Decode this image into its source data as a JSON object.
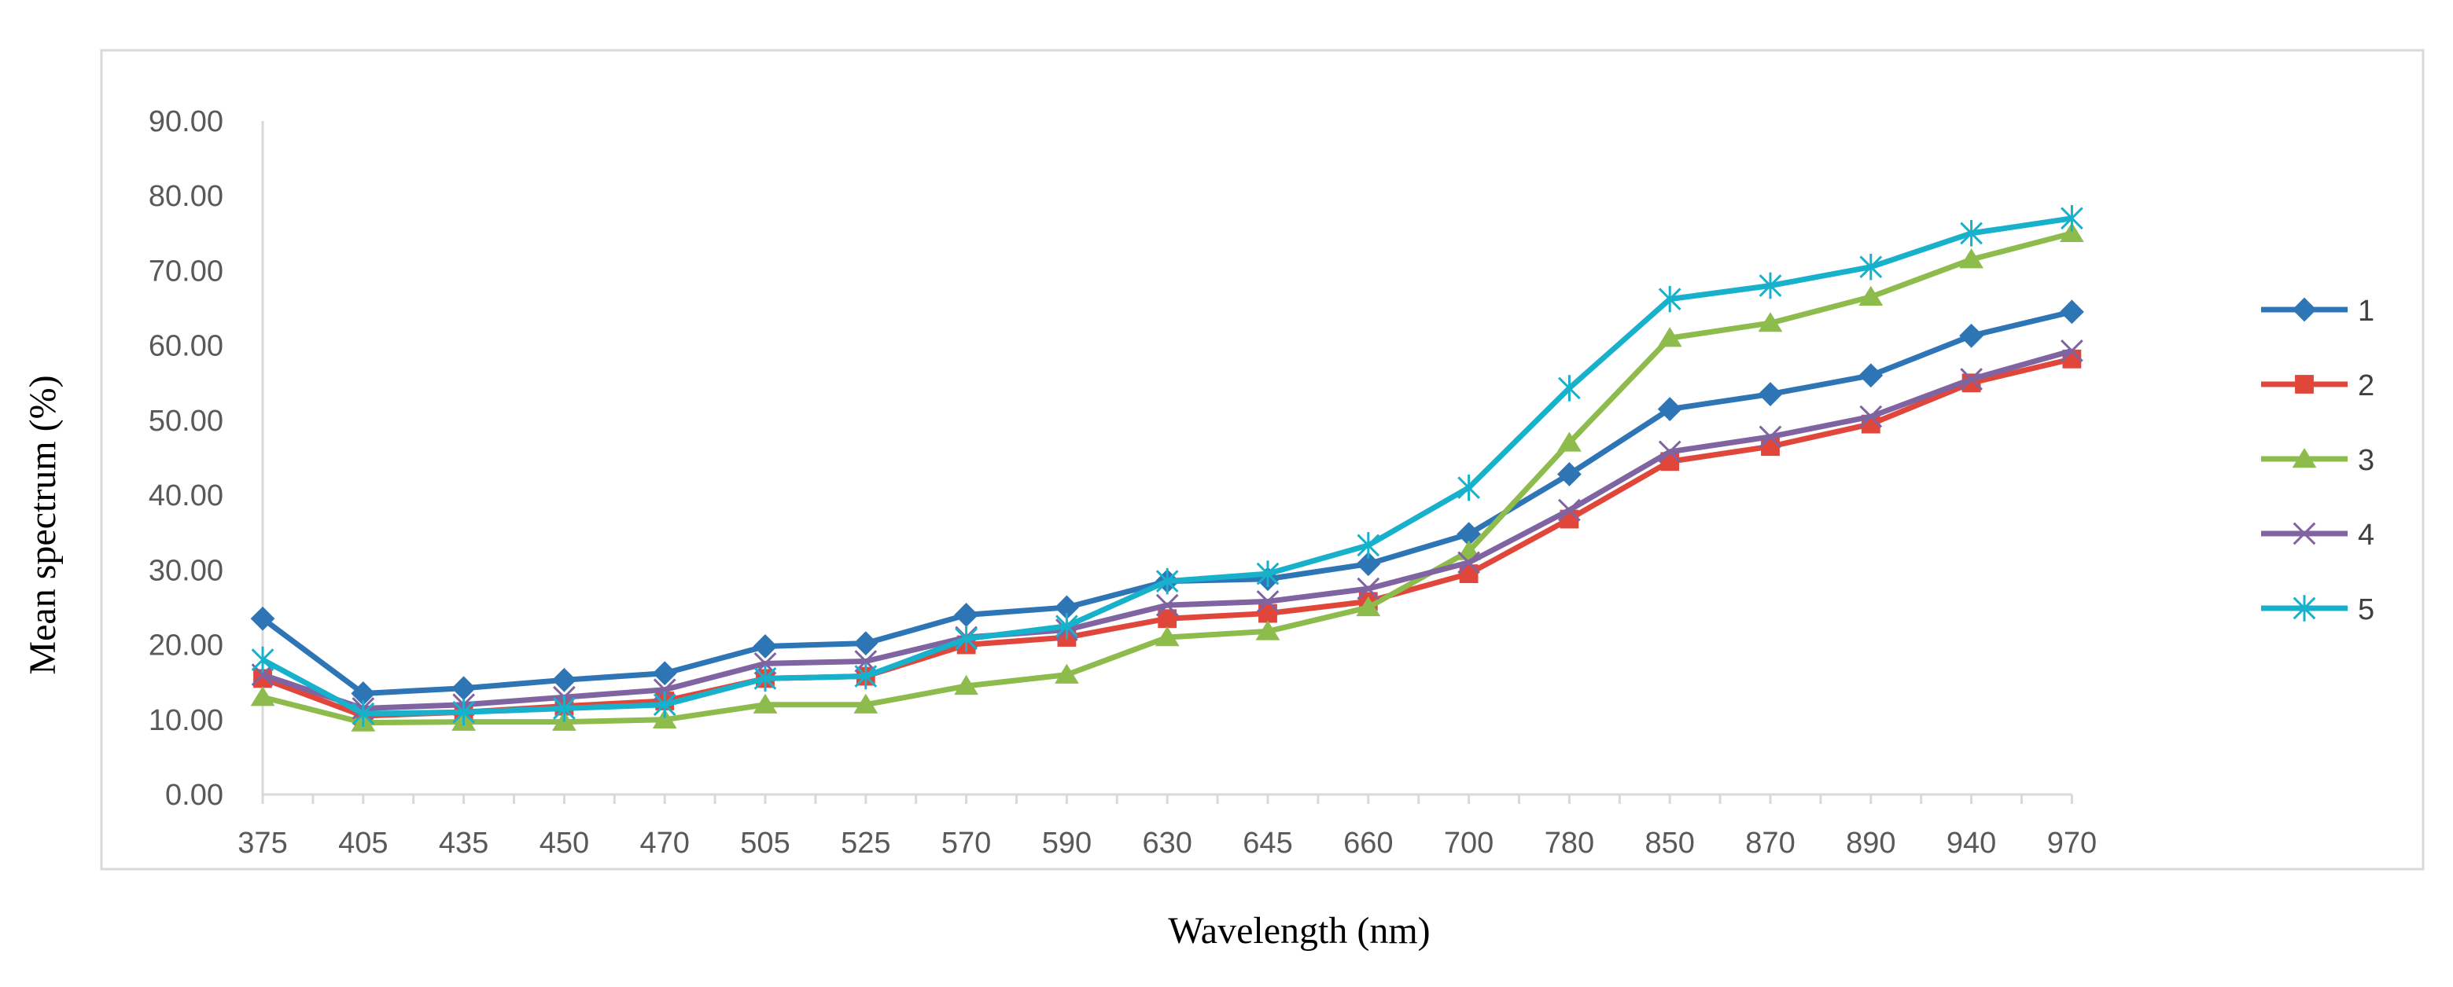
{
  "chart_data": {
    "type": "line",
    "title": "",
    "xlabel": "Wavelength (nm)",
    "ylabel": "Mean spectrum (%)",
    "ylim": [
      0,
      90
    ],
    "y_ticks": [
      "0.00",
      "10.00",
      "20.00",
      "30.00",
      "40.00",
      "50.00",
      "60.00",
      "70.00",
      "80.00",
      "90.00"
    ],
    "grid": false,
    "legend": "right",
    "categories": [
      "375",
      "405",
      "435",
      "450",
      "470",
      "505",
      "525",
      "570",
      "590",
      "630",
      "645",
      "660",
      "700",
      "780",
      "850",
      "870",
      "890",
      "940",
      "970"
    ],
    "series": [
      {
        "name": "1",
        "color": "#2E75B6",
        "marker": "diamond",
        "values": [
          23.5,
          13.5,
          14.2,
          15.3,
          16.2,
          19.8,
          20.2,
          24.0,
          25.0,
          28.5,
          28.8,
          30.8,
          34.8,
          42.8,
          51.5,
          53.5,
          56.0,
          61.3,
          64.5
        ]
      },
      {
        "name": "2",
        "color": "#E0473A",
        "marker": "square",
        "values": [
          15.5,
          10.5,
          11.0,
          11.8,
          12.5,
          15.5,
          15.8,
          20.0,
          21.0,
          23.5,
          24.2,
          25.8,
          29.5,
          36.8,
          44.5,
          46.5,
          49.5,
          55.0,
          58.2
        ]
      },
      {
        "name": "3",
        "color": "#8DBB4C",
        "marker": "triangle",
        "values": [
          13.0,
          9.6,
          9.7,
          9.7,
          10.0,
          12.0,
          12.0,
          14.5,
          16.0,
          21.0,
          21.8,
          25.0,
          32.5,
          47.0,
          61.0,
          63.0,
          66.5,
          71.5,
          75.0
        ]
      },
      {
        "name": "4",
        "color": "#8064A2",
        "marker": "x",
        "values": [
          16.0,
          11.5,
          12.0,
          13.0,
          14.0,
          17.5,
          17.8,
          21.0,
          22.0,
          25.3,
          25.8,
          27.5,
          31.0,
          38.0,
          45.8,
          47.8,
          50.5,
          55.5,
          59.3
        ]
      },
      {
        "name": "5",
        "color": "#17B1CC",
        "marker": "star",
        "values": [
          18.0,
          10.8,
          11.0,
          11.5,
          12.0,
          15.5,
          15.8,
          20.8,
          22.5,
          28.5,
          29.5,
          33.3,
          41.0,
          54.3,
          66.2,
          68.0,
          70.5,
          75.0,
          77.0
        ]
      }
    ]
  }
}
